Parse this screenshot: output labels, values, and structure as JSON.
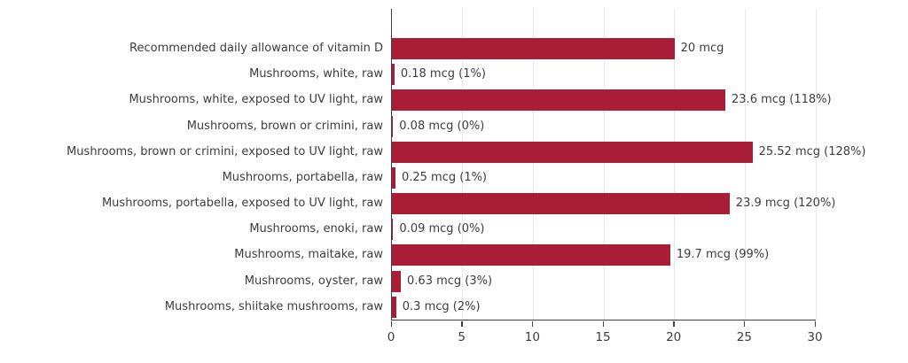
{
  "chart_data": {
    "type": "bar",
    "orientation": "horizontal",
    "title": "",
    "xlabel": "",
    "ylabel": "",
    "xlim": [
      0,
      30
    ],
    "x_ticks": [
      0,
      5,
      10,
      15,
      20,
      25,
      30
    ],
    "grid": "vertical-light",
    "legend": "none",
    "unit": "mcg",
    "categories": [
      "Recommended daily allowance of vitamin D",
      "Mushrooms, white, raw",
      "Mushrooms, white, exposed to UV light, raw",
      "Mushrooms, brown or crimini, raw",
      "Mushrooms, brown or crimini, exposed to UV light, raw",
      "Mushrooms, portabella, raw",
      "Mushrooms, portabella, exposed to UV light, raw",
      "Mushrooms, enoki, raw",
      "Mushrooms, maitake, raw",
      "Mushrooms, oyster, raw",
      "Mushrooms, shiitake mushrooms, raw"
    ],
    "values": [
      20,
      0.18,
      23.6,
      0.08,
      25.52,
      0.25,
      23.9,
      0.09,
      19.7,
      0.63,
      0.3
    ],
    "value_labels": [
      "20 mcg",
      "0.18 mcg (1%)",
      "23.6 mcg (118%)",
      "0.08 mcg (0%)",
      "25.52 mcg (128%)",
      "0.25 mcg (1%)",
      "23.9 mcg (120%)",
      "0.09 mcg (0%)",
      "19.7 mcg (99%)",
      "0.63 mcg (3%)",
      "0.3 mcg (2%)"
    ],
    "colors": {
      "bar": "#a91e36",
      "text": "#3d3d3d",
      "axis": "#3f3f3f",
      "gridline": "#e8e8e8",
      "background": "#ffffff"
    }
  }
}
